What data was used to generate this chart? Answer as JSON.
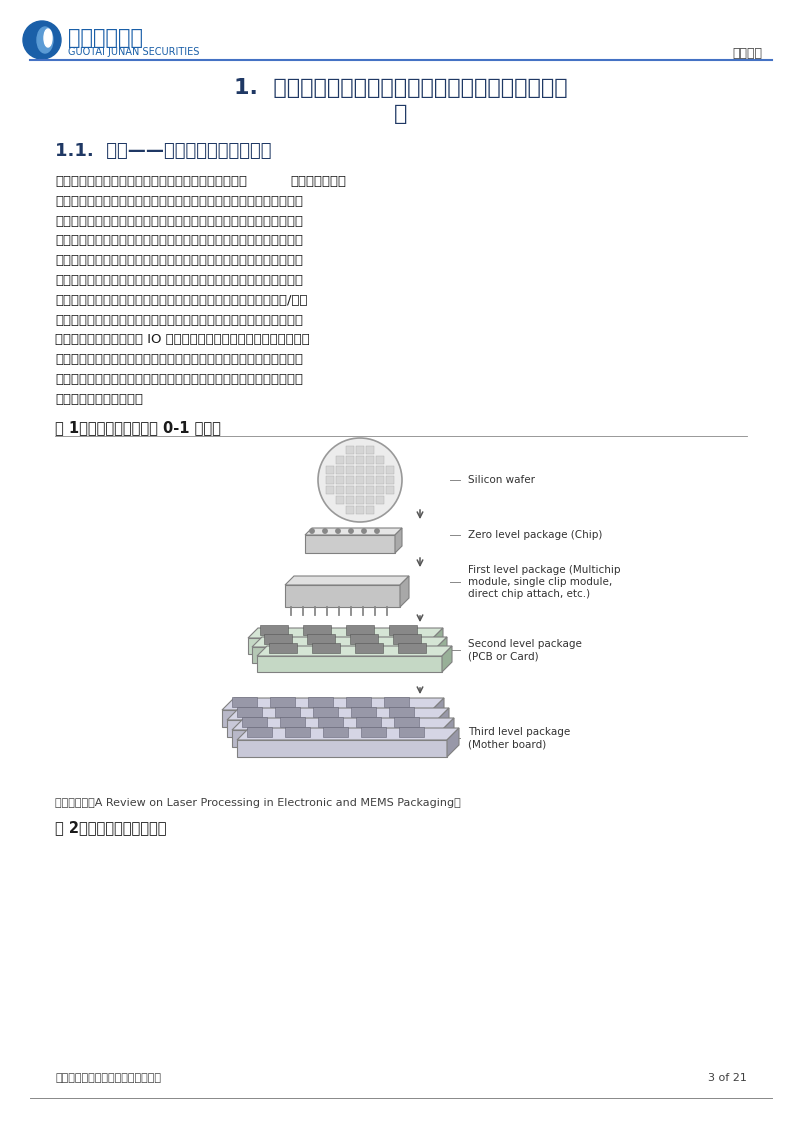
{
  "page_bg": "#ffffff",
  "header_logo_text": "国泰君安证券",
  "header_logo_sub": "GUOTAI JUNAN SECURITIES",
  "header_right_text": "产业深度",
  "header_line_color": "#4472c4",
  "title_main": "1.  先进封装向高集成、高互联迈进，倒装封装空间广",
  "title_main2": "阔",
  "section_title": "1.1.  封装——芯片到电子器件的桥梁",
  "body_text_lines": [
    "狭义封装主要针对一级封装，封装材料向高标准演进。半导体封装是半",
    "导体制造工艺的后道工序，为芯片和印制线路板之间提供电互联、机械",
    "支撑、机械和环境保护及导热通道。广义的封装主要分为零级到四级封",
    "装，零级封装指芯片上的互联，得到的是芯片，一级封装，即狭义上的",
    "封装，指将芯片固定在封装基板或引线框架上，将芯片的焊盘与封装基",
    "板或引线框架的内引脚互联从而进一步与外引脚连通，并对芯片与互联",
    "进行保护性包封。二级封装为板级封装，即得到印制线路板、三级/四级",
    "封装将得到一个完整的电子产品。当前，集成电路芯片朝着大尺寸、高",
    "集成度、小特征尺寸和高 IO 方向发展，因此对封装技术提出了更高要",
    "求，这与封装材料的性能提升及成本下降是离不开的。目前，封装材料",
    "正向着高导热、高机械强度、高粘结性、低吸水率和低应力方向发展，",
    "推动先进封装不断进步。"
  ],
  "body_bold_part": "狭义封装主要针对一级封装，封装材料向高标准演进。",
  "body_rest_first": "半导体封装是半",
  "fig1_title": "图 1：先进封装主要针对 0-1 级封装",
  "fig1_labels": [
    "Silicon wafer",
    "Zero level package (Chip)",
    "First level package (Multichip\nmodule, single clip module,\ndirect chip attach, etc.)",
    "Second level package\n(PCB or Card)",
    "Third level package\n(Mother board)"
  ],
  "fig1_source": "资料来源：《A Review on Laser Processing in Electronic and MEMS Packaging》",
  "fig2_title": "图 2：封装材料产业链图谱",
  "footer_left": "请务必阅读正文之后的免责条款部分",
  "footer_right": "3 of 21",
  "title_color": "#1f3864",
  "section_color": "#1f3864",
  "logo_text_color": "#1a5fa8"
}
